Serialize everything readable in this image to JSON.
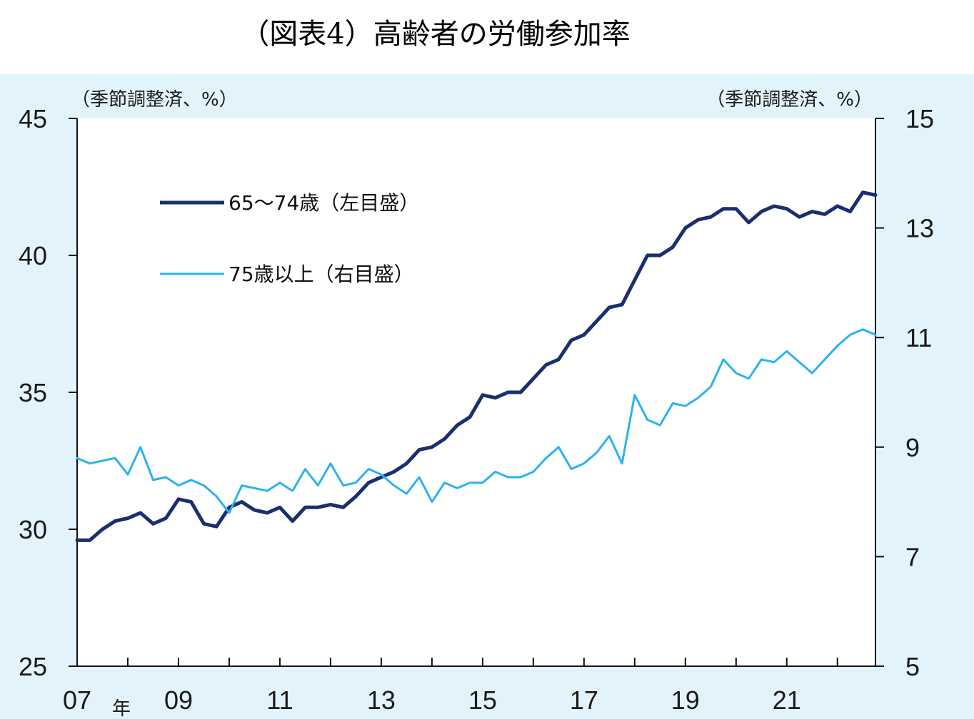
{
  "title": "（図表4）高齢者の労働参加率",
  "chart_data": {
    "type": "line",
    "left_axis": {
      "unit_label": "（季節調整済、%）",
      "ylim": [
        25,
        45
      ],
      "ticks": [
        25,
        30,
        35,
        40,
        45
      ]
    },
    "right_axis": {
      "unit_label": "（季節調整済、%）",
      "ylim": [
        5,
        15
      ],
      "ticks": [
        5,
        7,
        9,
        11,
        13,
        15
      ]
    },
    "x_axis": {
      "xlim": [
        2007,
        2022.75
      ],
      "tick_labels": [
        {
          "x": 2007,
          "label": "07"
        },
        {
          "x": 2009,
          "label": "09"
        },
        {
          "x": 2011,
          "label": "11"
        },
        {
          "x": 2013,
          "label": "13"
        },
        {
          "x": 2015,
          "label": "15"
        },
        {
          "x": 2017,
          "label": "17"
        },
        {
          "x": 2019,
          "label": "19"
        },
        {
          "x": 2021,
          "label": "21"
        }
      ],
      "year_suffix": "年",
      "minor_ticks": [
        2008,
        2010,
        2012,
        2014,
        2016,
        2018,
        2020,
        2022
      ]
    },
    "grid": false,
    "legend_position": "top-left",
    "series": [
      {
        "name": "65～74歳（左目盛）",
        "axis": "left",
        "color": "#1b2f6e",
        "x_start": 2007,
        "step": 0.25,
        "values": [
          29.6,
          29.6,
          30.0,
          30.3,
          30.4,
          30.6,
          30.2,
          30.4,
          31.1,
          31.0,
          30.2,
          30.1,
          30.8,
          31.0,
          30.7,
          30.6,
          30.8,
          30.3,
          30.8,
          30.8,
          30.9,
          30.8,
          31.2,
          31.7,
          31.9,
          32.1,
          32.4,
          32.9,
          33.0,
          33.3,
          33.8,
          34.1,
          34.9,
          34.8,
          35.0,
          35.0,
          35.5,
          36.0,
          36.2,
          36.9,
          37.1,
          37.6,
          38.1,
          38.2,
          39.1,
          40.0,
          40.0,
          40.3,
          41.0,
          41.3,
          41.4,
          41.7,
          41.7,
          41.2,
          41.6,
          41.8,
          41.7,
          41.4,
          41.6,
          41.5,
          41.8,
          41.6,
          42.3,
          42.2
        ]
      },
      {
        "name": "75歳以上（右目盛）",
        "axis": "right",
        "color": "#2cb2ef",
        "x_start": 2007,
        "step": 0.25,
        "values": [
          8.8,
          8.7,
          8.75,
          8.8,
          8.5,
          9.0,
          8.4,
          8.45,
          8.3,
          8.4,
          8.3,
          8.1,
          7.8,
          8.3,
          8.25,
          8.2,
          8.35,
          8.2,
          8.6,
          8.3,
          8.7,
          8.3,
          8.35,
          8.6,
          8.5,
          8.3,
          8.15,
          8.45,
          8.0,
          8.35,
          8.25,
          8.35,
          8.35,
          8.55,
          8.45,
          8.45,
          8.55,
          8.8,
          9.0,
          8.6,
          8.7,
          8.9,
          9.2,
          8.7,
          9.95,
          9.5,
          9.4,
          9.8,
          9.75,
          9.9,
          10.1,
          10.6,
          10.35,
          10.25,
          10.6,
          10.55,
          10.75,
          10.55,
          10.35,
          10.6,
          10.85,
          11.05,
          11.15,
          11.05
        ]
      }
    ]
  }
}
